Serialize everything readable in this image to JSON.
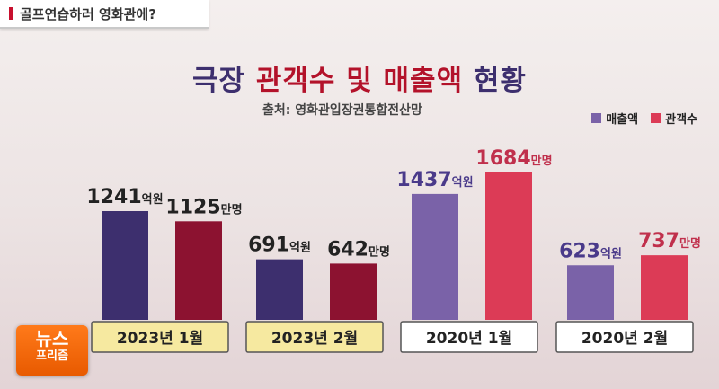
{
  "topic": {
    "text": "골프연습하러 영화관에?"
  },
  "title": {
    "part1": "극장 ",
    "part2": "관객수 및 매출액 ",
    "part3": "현황"
  },
  "source": "출처: 영화관입장권통합전산망",
  "logo": {
    "line1": "뉴스",
    "line2": "프리즘"
  },
  "colors": {
    "revenue_dark": "#3d2f6e",
    "audience_dark": "#8c1230",
    "revenue_light": "#7a62a8",
    "audience_light": "#dc3b56",
    "highlight_box": "#f6e9a0"
  },
  "chart_data": {
    "type": "bar",
    "title": "극장 관객수 및 매출액 현황",
    "categories": [
      "2023년 1월",
      "2023년 2월",
      "2020년 1월",
      "2020년 2월"
    ],
    "series": [
      {
        "name": "매출액",
        "unit": "억원",
        "values": [
          1241,
          691,
          1437,
          623
        ]
      },
      {
        "name": "관객수",
        "unit": "만명",
        "values": [
          1125,
          642,
          1684,
          737
        ]
      }
    ],
    "legend": "top-right",
    "grid": false
  }
}
